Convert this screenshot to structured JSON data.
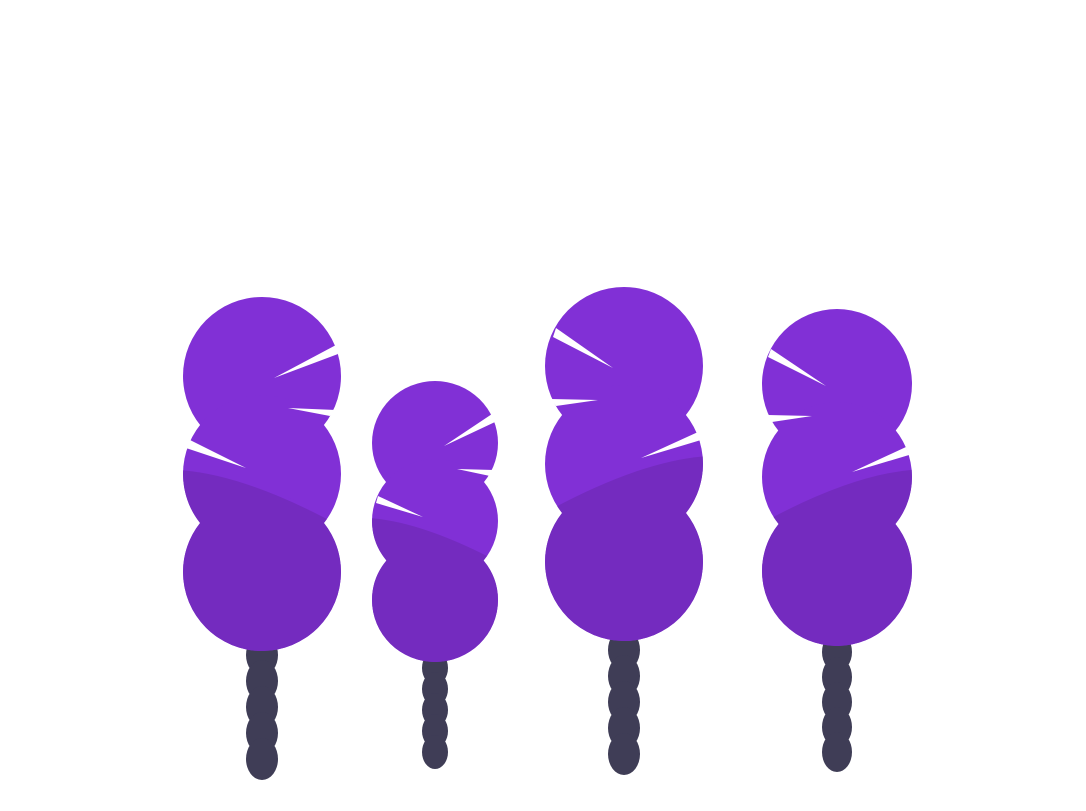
{
  "colors": {
    "background": "#ffffff",
    "foliage_light": "#8130d6",
    "foliage_dark": "#742bbf",
    "trunk": "#3f3d56",
    "highlight": "#ffffff"
  },
  "trees": [
    {
      "name": "tree-1",
      "foliage_blobs": 3,
      "trunk_segments": 5
    },
    {
      "name": "tree-2",
      "foliage_blobs": 3,
      "trunk_segments": 5
    },
    {
      "name": "tree-3",
      "foliage_blobs": 3,
      "trunk_segments": 5
    },
    {
      "name": "tree-4",
      "foliage_blobs": 3,
      "trunk_segments": 5
    }
  ]
}
